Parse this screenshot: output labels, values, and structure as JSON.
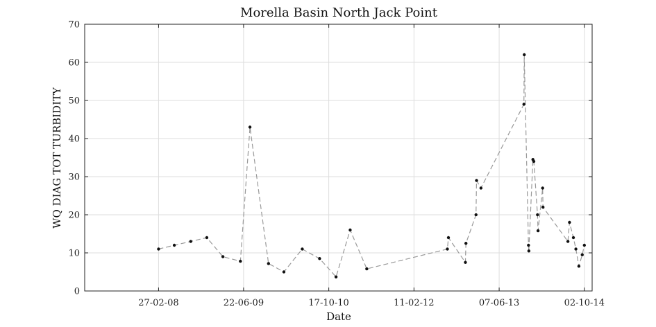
{
  "chart_data": {
    "type": "line",
    "title": "Morella Basin North Jack Point",
    "xlabel": "Date",
    "ylabel": "WQ DIAG TOT TURBIDITY",
    "ylim": [
      0,
      70
    ],
    "yticks": [
      0,
      10,
      20,
      30,
      40,
      50,
      60,
      70
    ],
    "xlim": [
      "2007-01-05",
      "2014-11-15"
    ],
    "xticks": [
      {
        "date": "2008-02-27",
        "label": "27-02-08"
      },
      {
        "date": "2009-06-22",
        "label": "22-06-09"
      },
      {
        "date": "2010-10-17",
        "label": "17-10-10"
      },
      {
        "date": "2012-02-11",
        "label": "11-02-12"
      },
      {
        "date": "2013-06-07",
        "label": "07-06-13"
      },
      {
        "date": "2014-10-02",
        "label": "02-10-14"
      }
    ],
    "grid": true,
    "line_color": "#999999",
    "marker_color": "#111111",
    "series": [
      {
        "points": [
          {
            "x": "2008-02-27",
            "y": 11
          },
          {
            "x": "2008-05-26",
            "y": 12
          },
          {
            "x": "2008-08-27",
            "y": 13
          },
          {
            "x": "2008-11-26",
            "y": 14
          },
          {
            "x": "2009-02-25",
            "y": 9
          },
          {
            "x": "2009-06-04",
            "y": 7.8
          },
          {
            "x": "2009-07-28",
            "y": 43
          },
          {
            "x": "2009-11-10",
            "y": 7.2
          },
          {
            "x": "2010-02-05",
            "y": 5
          },
          {
            "x": "2010-05-20",
            "y": 11
          },
          {
            "x": "2010-08-26",
            "y": 8.5
          },
          {
            "x": "2010-11-27",
            "y": 3.7
          },
          {
            "x": "2011-02-15",
            "y": 16
          },
          {
            "x": "2011-05-20",
            "y": 5.8
          },
          {
            "x": "2012-08-18",
            "y": 11
          },
          {
            "x": "2012-08-24",
            "y": 14
          },
          {
            "x": "2012-11-28",
            "y": 7.5
          },
          {
            "x": "2012-12-01",
            "y": 12.5
          },
          {
            "x": "2013-01-27",
            "y": 20
          },
          {
            "x": "2013-01-30",
            "y": 29
          },
          {
            "x": "2013-02-24",
            "y": 27
          },
          {
            "x": "2013-10-25",
            "y": 49
          },
          {
            "x": "2013-10-27",
            "y": 62
          },
          {
            "x": "2013-11-20",
            "y": 12
          },
          {
            "x": "2013-11-22",
            "y": 10.5
          },
          {
            "x": "2013-12-15",
            "y": 34.5
          },
          {
            "x": "2013-12-20",
            "y": 34
          },
          {
            "x": "2014-01-10",
            "y": 20
          },
          {
            "x": "2014-01-13",
            "y": 15.8
          },
          {
            "x": "2014-02-08",
            "y": 27
          },
          {
            "x": "2014-02-10",
            "y": 22
          },
          {
            "x": "2014-07-01",
            "y": 13
          },
          {
            "x": "2014-07-10",
            "y": 18
          },
          {
            "x": "2014-08-01",
            "y": 14
          },
          {
            "x": "2014-08-15",
            "y": 11
          },
          {
            "x": "2014-09-01",
            "y": 6.5
          },
          {
            "x": "2014-09-20",
            "y": 9.5
          },
          {
            "x": "2014-10-02",
            "y": 12
          }
        ]
      }
    ]
  }
}
